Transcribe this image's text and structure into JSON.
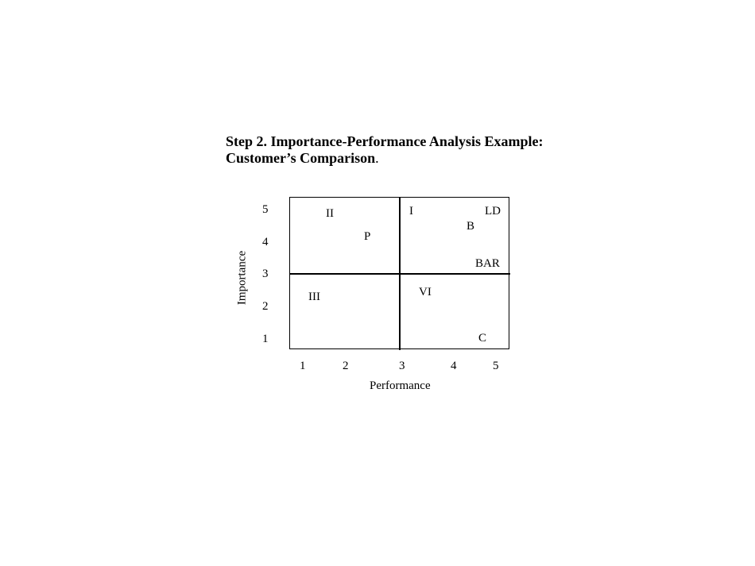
{
  "title": {
    "line1": "Step 2. Importance-Performance Analysis Example:",
    "line2_bold": "Customer’s Comparison",
    "line2_tail": "."
  },
  "chart_data": {
    "type": "scatter",
    "xlabel": "Performance",
    "ylabel": "Importance",
    "x_ticks": [
      "1",
      "2",
      "3",
      "4",
      "5"
    ],
    "y_ticks": [
      "5",
      "4",
      "3",
      "2",
      "1"
    ],
    "xlim": [
      1,
      5
    ],
    "ylim": [
      1,
      5
    ],
    "grid": false,
    "quadrants": [
      "I",
      "II",
      "III",
      "VI"
    ],
    "points": [
      {
        "label": "LD"
      },
      {
        "label": "B"
      },
      {
        "label": "P"
      },
      {
        "label": "BAR"
      },
      {
        "label": "C"
      }
    ]
  }
}
